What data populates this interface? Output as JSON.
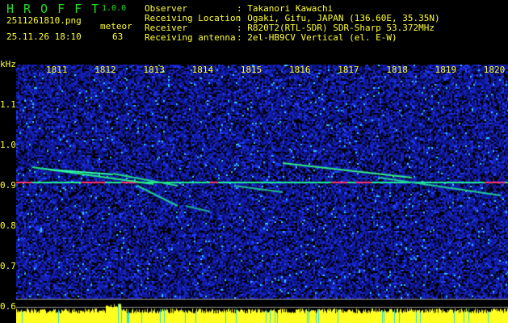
{
  "header": {
    "app_name": "HROFFT",
    "version": "1.0.0",
    "filename": "2511261810.png",
    "datetime": "25.11.26 18:10",
    "meteor_label": "meteor",
    "meteor_count": "63",
    "info": [
      {
        "label": "Observer",
        "value": ": Takanori Kawachi"
      },
      {
        "label": "Receiving Location",
        "value": ": Ogaki, Gifu, JAPAN (136.60E, 35.35N)"
      },
      {
        "label": "Receiver",
        "value": ": R820T2(RTL-SDR) SDR-Sharp 53.372MHz"
      },
      {
        "label": "Receiving antenna",
        "value": ": 2el-HB9CV Vertical (el. E-W)"
      }
    ]
  },
  "chart_data": {
    "type": "heatmap",
    "ylabel": "kHz",
    "x_ticks": [
      "1811",
      "1812",
      "1813",
      "1814",
      "1815",
      "1816",
      "1817",
      "1818",
      "1819",
      "1820"
    ],
    "y_ticks": [
      "1.1",
      "1.0",
      "0.9",
      "0.8",
      "0.7",
      "0.6"
    ],
    "ylim": [
      0.56,
      1.2
    ],
    "colors": {
      "background": "#000000",
      "noise": "#1a2ad0",
      "signal": "#22ff88",
      "strong": "#ff3060",
      "text": "#ffff33",
      "logo": "#22dd22"
    }
  }
}
